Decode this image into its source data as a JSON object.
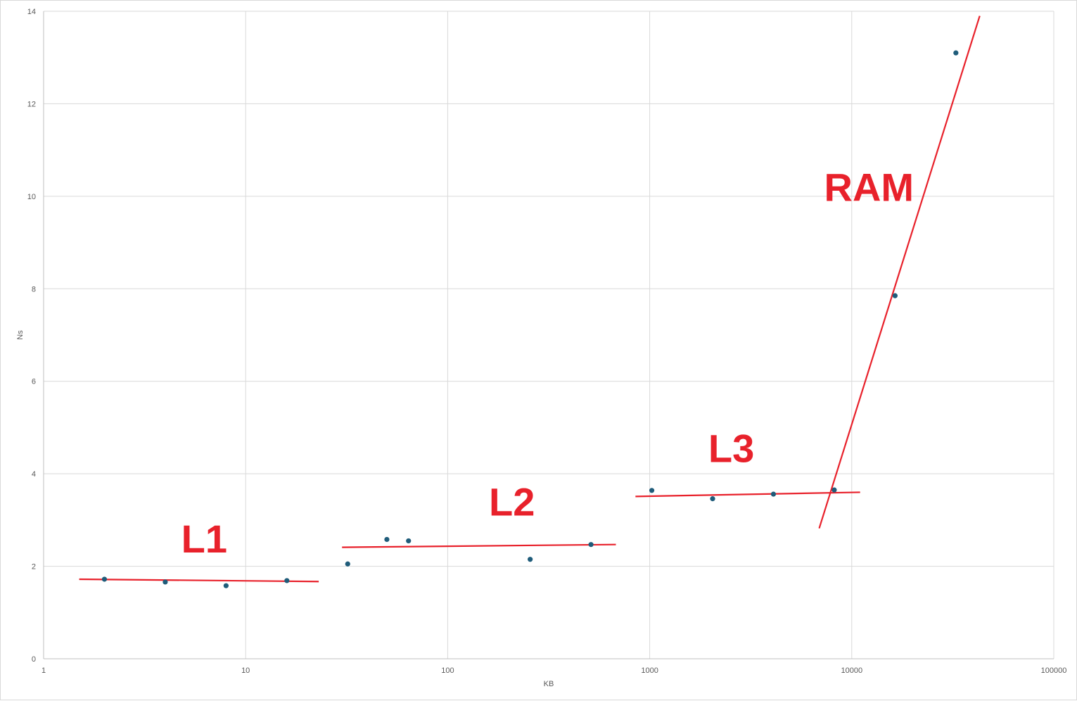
{
  "chart_data": {
    "type": "scatter",
    "title": "",
    "xlabel": "KB",
    "ylabel": "Ns",
    "x_scale": "log",
    "xlim": [
      1,
      100000
    ],
    "ylim": [
      0,
      14
    ],
    "grid": true,
    "x_ticks": [
      1,
      10,
      100,
      1000,
      10000,
      100000
    ],
    "x_tick_labels": [
      "1",
      "10",
      "100",
      "1000",
      "10000",
      "100000"
    ],
    "y_ticks": [
      0,
      2,
      4,
      6,
      8,
      10,
      12,
      14
    ],
    "y_tick_labels": [
      "0",
      "2",
      "4",
      "6",
      "8",
      "10",
      "12",
      "14"
    ],
    "point_color": "#1f5c7a",
    "line_color": "#e8212b",
    "series": [
      {
        "points": [
          {
            "x": 2,
            "y": 1.72
          },
          {
            "x": 4,
            "y": 1.66
          },
          {
            "x": 8,
            "y": 1.58
          },
          {
            "x": 16,
            "y": 1.69
          },
          {
            "x": 32,
            "y": 2.05
          },
          {
            "x": 50,
            "y": 2.58
          },
          {
            "x": 64,
            "y": 2.55
          },
          {
            "x": 256,
            "y": 2.15
          },
          {
            "x": 512,
            "y": 2.47
          },
          {
            "x": 1024,
            "y": 3.64
          },
          {
            "x": 2048,
            "y": 3.46
          },
          {
            "x": 4096,
            "y": 3.56
          },
          {
            "x": 8192,
            "y": 3.65
          },
          {
            "x": 16384,
            "y": 7.85
          },
          {
            "x": 32768,
            "y": 13.1
          }
        ]
      }
    ],
    "annotations": [
      {
        "label": "L1",
        "x": 4.8,
        "y": 2.3,
        "line": {
          "x1": 1.5,
          "y1": 1.72,
          "x2": 23,
          "y2": 1.67
        }
      },
      {
        "label": "L2",
        "x": 160,
        "y": 3.1,
        "line": {
          "x1": 30,
          "y1": 2.41,
          "x2": 680,
          "y2": 2.47
        }
      },
      {
        "label": "L3",
        "x": 1950,
        "y": 4.25,
        "line": {
          "x1": 850,
          "y1": 3.51,
          "x2": 11000,
          "y2": 3.6
        }
      },
      {
        "label": "RAM",
        "x": 7300,
        "y": 9.9,
        "line": {
          "x1": 6900,
          "y1": 2.82,
          "x2": 43000,
          "y2": 13.9
        }
      }
    ]
  }
}
